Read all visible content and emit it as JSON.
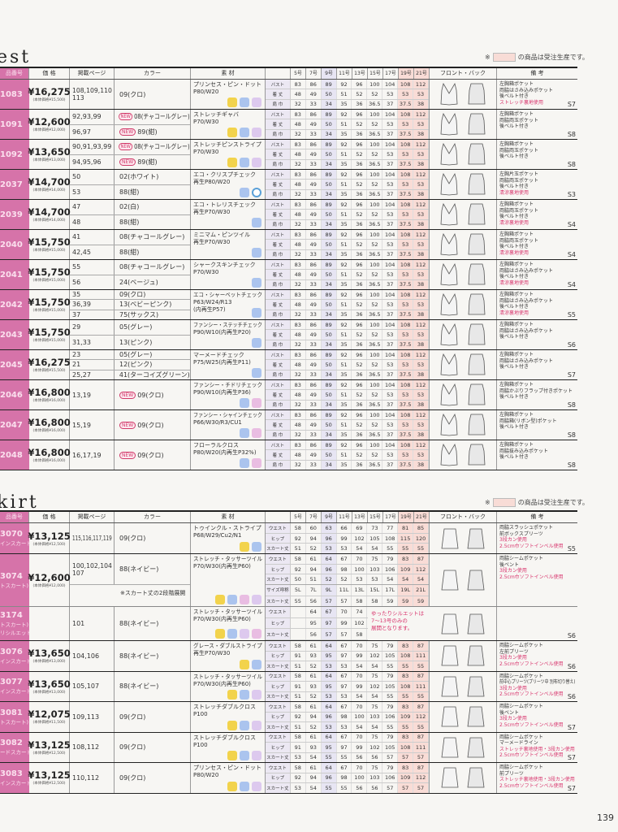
{
  "notice": {
    "mark": "※",
    "text": "の商品は受注生産です。",
    "box_color": "#f8dcd6"
  },
  "page_number": "139",
  "colors": {
    "code_column": "#d673a9",
    "size_highlight": "#f9dcd6",
    "size_9": "#e7e5f3",
    "red_note": "#d8336c"
  },
  "vest": {
    "title": "est",
    "headers": {
      "code": "品番号",
      "price": "価 格",
      "pages": "掲載ページ",
      "color": "カラー",
      "material": "素 材",
      "sizes": [
        "5号",
        "7号",
        "9号",
        "11号",
        "13号",
        "15号",
        "17号",
        "19号",
        "21号"
      ],
      "front_back": "フロント・バック",
      "notes": "備 考"
    },
    "size_rows": [
      {
        "label": "バスト",
        "values": [
          "83",
          "86",
          "89",
          "92",
          "96",
          "100",
          "104",
          "108",
          "112"
        ]
      },
      {
        "label": "着 丈",
        "values": [
          "48",
          "49",
          "50",
          "51",
          "52",
          "52",
          "53",
          "53",
          "53"
        ]
      },
      {
        "label": "肩 巾",
        "values": [
          "32",
          "33",
          "34",
          "35",
          "36",
          "36.5",
          "37",
          "37.5",
          "38"
        ]
      }
    ],
    "products": [
      {
        "code": "1083",
        "price": "¥16,275",
        "base": "(本体価格¥15,500)",
        "variants": [
          {
            "pages": "108,109,110\n113",
            "color": "09(クロ)"
          }
        ],
        "material": [
          "プリンセス・ピン・ドット",
          "P80/W20"
        ],
        "icons": [
          "smile-icon",
          "washing-icon",
          "stretch-icon"
        ],
        "notes": [
          "左胸箱ポケット",
          "両脇はさみ込みポケット",
          "後ベルト付き"
        ],
        "red": [
          "ストレッチ裏地使用"
        ],
        "page": "S7"
      },
      {
        "code": "1091",
        "price": "¥12,600",
        "base": "(本体価格¥12,000)",
        "variants": [
          {
            "pages": "92,93,99",
            "new": "NEW",
            "color": "08(チャコールグレー)"
          },
          {
            "pages": "96,97",
            "new": "NEW",
            "color": "89(紺)"
          }
        ],
        "material": [
          "ストレッチギャバ",
          "P70/W30"
        ],
        "icons": [
          "smile-icon",
          "washing-icon",
          "stretch-icon"
        ],
        "notes": [
          "左胸箱ポケット",
          "両脇両玉ポケット",
          "後ベルト付き"
        ],
        "red": [],
        "page": "S8"
      },
      {
        "code": "1092",
        "price": "¥13,650",
        "base": "(本体価格¥13,000)",
        "variants": [
          {
            "pages": "90,91,93,99",
            "new": "NEW",
            "color": "08(チャコールグレー)"
          },
          {
            "pages": "94,95,96",
            "new": "NEW",
            "color": "89(紺)"
          }
        ],
        "material": [
          "ストレッチピンストライプ",
          "P70/W30"
        ],
        "icons": [
          "smile-icon",
          "washing-icon",
          "stretch-icon"
        ],
        "notes": [
          "左胸箱ポケット",
          "両脇両玉ポケット",
          "後ベルト付き"
        ],
        "red": [],
        "page": "S8"
      },
      {
        "code": "2037",
        "price": "¥14,700",
        "base": "(本体価格¥14,000)",
        "variants": [
          {
            "pages": "50",
            "color": "02(ホワイト)"
          },
          {
            "pages": "53",
            "color": "88(紺)"
          }
        ],
        "material": [
          "エコ・クリスプチェック",
          "再生P80/W20"
        ],
        "icons": [
          "washing-icon",
          "eco-icon"
        ],
        "notes": [
          "左胸片玉ポケット",
          "両脇両玉ポケット",
          "後ベルト付き"
        ],
        "red": [
          "清涼裏地使用"
        ],
        "page": "S3"
      },
      {
        "code": "2039",
        "price": "¥14,700",
        "base": "(本体価格¥14,000)",
        "variants": [
          {
            "pages": "47",
            "color": "02(白)"
          },
          {
            "pages": "48",
            "color": "88(紺)"
          }
        ],
        "material": [
          "エコ・トレリスチェック",
          "再生P70/W30"
        ],
        "icons": [
          "washing-icon"
        ],
        "notes": [
          "左胸箱ポケット",
          "両脇両玉ポケット",
          "後ベルト付き"
        ],
        "red": [
          "清涼裏地使用"
        ],
        "page": "S4"
      },
      {
        "code": "2040",
        "price": "¥15,750",
        "base": "(本体価格¥15,000)",
        "variants": [
          {
            "pages": "41",
            "color": "08(チャコールグレー)"
          },
          {
            "pages": "42,45",
            "color": "88(紺)"
          }
        ],
        "material": [
          "ミニマム・ピンツイル",
          "再生P70/W30"
        ],
        "icons": [
          "washing-icon"
        ],
        "notes": [
          "左胸箱ポケット",
          "両脇両玉ポケット",
          "後ベルト付き"
        ],
        "red": [
          "清涼裏地使用"
        ],
        "page": "S4"
      },
      {
        "code": "2041",
        "price": "¥15,750",
        "base": "(本体価格¥15,000)",
        "variants": [
          {
            "pages": "55",
            "color": "08(チャコールグレー)"
          },
          {
            "pages": "56",
            "color": "24(ベージュ)"
          }
        ],
        "material": [
          "シャークスキンチェック",
          "P70/W30"
        ],
        "icons": [
          "washing-icon"
        ],
        "notes": [
          "左胸箱ポケット",
          "両脇はさみ込みポケット",
          "後ベルト付き"
        ],
        "red": [
          "清涼裏地使用"
        ],
        "page": "S4"
      },
      {
        "code": "2042",
        "price": "¥15,750",
        "base": "(本体価格¥15,000)",
        "variants": [
          {
            "pages": "35",
            "color": "09(クロ)"
          },
          {
            "pages": "36,39",
            "color": "13(ベビーピンク)"
          },
          {
            "pages": "37",
            "color": "75(サックス)"
          }
        ],
        "material": [
          "エコ・シャーベットチェック",
          "P63/W24/R13",
          "(内再生P57)"
        ],
        "icons": [
          "washing-icon"
        ],
        "notes": [
          "左胸箱ポケット",
          "両脇はさみ込みポケット",
          "後ベルト付き"
        ],
        "red": [
          "清涼裏地使用"
        ],
        "page": "S5"
      },
      {
        "code": "2043",
        "price": "¥15,750",
        "base": "(本体価格¥15,000)",
        "variants": [
          {
            "pages": "29",
            "color": "05(グレー)"
          },
          {
            "pages": "31,33",
            "color": "13(ピンク)"
          }
        ],
        "material": [
          "ファンシー・ステッチチェック",
          "P90/W10(内再生P20)"
        ],
        "icons": [
          "washing-icon"
        ],
        "notes": [
          "左胸箱ポケット",
          "両脇はさみ込みポケット",
          "後ベルト付き"
        ],
        "red": [],
        "page": "S6"
      },
      {
        "code": "2045",
        "price": "¥16,275",
        "base": "(本体価格¥15,500)",
        "variants": [
          {
            "pages": "23",
            "color": "05(グレー)"
          },
          {
            "pages": "21",
            "color": "12(ピンク)"
          },
          {
            "pages": "25,27",
            "color": "41(ターコイズグリーン)"
          }
        ],
        "material": [
          "マーメードチェック",
          "P75/W25(内再生P11)"
        ],
        "icons": [
          "washing-icon"
        ],
        "notes": [
          "左胸箱ポケット",
          "両脇はさみ込みポケット",
          "後ベルト付き"
        ],
        "red": [],
        "page": "S7"
      },
      {
        "code": "2046",
        "price": "¥16,800",
        "base": "(本体価格¥16,000)",
        "variants": [
          {
            "pages": "13,19",
            "new": "NEW",
            "color": "09(クロ)"
          }
        ],
        "material": [
          "ファンシー・チドリチェック",
          "P90/W10(内再生P36)"
        ],
        "icons": [
          "washing-icon",
          "pocket-icon"
        ],
        "notes": [
          "左胸箱ポケット",
          "両脇かぶりフラップ付きポケット",
          "後ベルト付き"
        ],
        "red": [],
        "page": "S8"
      },
      {
        "code": "2047",
        "price": "¥16,800",
        "base": "(本体価格¥16,000)",
        "variants": [
          {
            "pages": "15,19",
            "new": "NEW",
            "color": "09(クロ)"
          }
        ],
        "material": [
          "ファンシー・シャインチェック",
          "P66/W30/R3/CU1"
        ],
        "icons": [
          "washing-icon",
          "pocket-icon"
        ],
        "notes": [
          "左胸箱ポケット",
          "両脇箱(リボン型)ポケット",
          "後ベルト付き"
        ],
        "red": [],
        "page": "S8"
      },
      {
        "code": "2048",
        "price": "¥16,800",
        "base": "(本体価格¥16,000)",
        "variants": [
          {
            "pages": "16,17,19",
            "new": "NEW",
            "color": "09(クロ)"
          }
        ],
        "material": [
          "フローラルクロス",
          "P80/W20(内再生P32%)"
        ],
        "icons": [
          "washing-icon",
          "pocket-icon"
        ],
        "notes": [
          "左胸箱ポケット",
          "両脇抜み込みポケット",
          "後ベルト付き"
        ],
        "red": [],
        "page": "S8"
      }
    ]
  },
  "skirt": {
    "title": "kirt",
    "headers": {
      "code": "品番号",
      "price": "価 格",
      "pages": "掲載ページ",
      "color": "カラー",
      "material": "素 材",
      "sizes": [
        "5号",
        "7号",
        "9号",
        "11号",
        "13号",
        "15号",
        "17号",
        "19号",
        "21号"
      ],
      "front_back": "フロント・バック",
      "notes": "備 考"
    },
    "size_labels": [
      "ウエスト",
      "ヒップ",
      "スカート丈"
    ],
    "products": [
      {
        "code": "3070",
        "sub": "インスカート)",
        "price": "¥13,125",
        "base": "(本体価格¥12,500)",
        "variants": [
          {
            "pages": "115,116,117,119",
            "color": "09(クロ)"
          }
        ],
        "material": [
          "トゥインクル・ストライプ",
          "P68/W29/Cu2/N1"
        ],
        "icons": [
          "smile-icon",
          "washing-icon"
        ],
        "sizes": [
          [
            "58",
            "60",
            "63",
            "66",
            "69",
            "73",
            "77",
            "81",
            "85"
          ],
          [
            "92",
            "94",
            "96",
            "99",
            "102",
            "105",
            "108",
            "115",
            "120"
          ],
          [
            "51",
            "52",
            "53",
            "53",
            "54",
            "54",
            "55",
            "55",
            "55"
          ]
        ],
        "notes": [
          "両脇スラッシュポケット",
          "前ボックスプリーツ"
        ],
        "red": [
          "3段カン使用",
          "2.5cm巾ソフトインベル使用"
        ],
        "page": "S5"
      },
      {
        "code": "3074",
        "sub": "トスカート)",
        "price": "¥12,600",
        "base": "(本体価格¥12,000)",
        "variants": [
          {
            "pages": "100,102,104\n107",
            "color": "88(ネイビー)"
          }
        ],
        "material": [
          "ストレッチ・タッサーツイル",
          "P70/W30(内再生P60)"
        ],
        "icons": [
          "smile-icon",
          "washing-icon",
          "pocket-icon",
          "stretch-icon"
        ],
        "sizes": [
          [
            "58",
            "61",
            "64",
            "67",
            "70",
            "75",
            "79",
            "83",
            "87"
          ],
          [
            "92",
            "94",
            "96",
            "98",
            "100",
            "103",
            "106",
            "109",
            "112"
          ],
          [
            "50",
            "51",
            "52",
            "52",
            "53",
            "53",
            "54",
            "54",
            "54"
          ]
        ],
        "notes": [
          "両脇シームポケット",
          "後ベント"
        ],
        "red": [
          "3段カン使用",
          "2.5cm巾ソフトインベル使用"
        ],
        "page": "",
        "long": {
          "caption": "※スカート丈の2段階展開",
          "labels": [
            "サイズ呼称",
            "スカート丈"
          ],
          "names": [
            "5L",
            "7L",
            "9L",
            "11L",
            "13L",
            "15L",
            "17L",
            "19L",
            "21L"
          ],
          "lengths": [
            "55",
            "56",
            "57",
            "57",
            "58",
            "58",
            "59",
            "59",
            "59"
          ]
        }
      },
      {
        "code": "3174",
        "sub": "トスカート)",
        "sub2": "リシルエット)",
        "price": "",
        "base": "",
        "variants": [
          {
            "pages": "101",
            "color": "88(ネイビー)"
          }
        ],
        "material": [
          "ストレッチ・タッサーツイル",
          "P70/W30(内再生P60)"
        ],
        "icons": [
          "smile-icon",
          "washing-icon",
          "stretch-icon",
          "pocket-icon"
        ],
        "sizes": [
          [
            "",
            "64",
            "67",
            "70",
            "74"
          ],
          [
            "",
            "95",
            "97",
            "99",
            "102"
          ],
          [
            "",
            "56",
            "57",
            "57",
            "58"
          ]
        ],
        "warn": [
          "ゆったりシルエットは",
          "7〜13号のみの",
          "展開となります。"
        ],
        "notes": [],
        "red": [],
        "page": "S6"
      },
      {
        "code": "3076",
        "sub": "インスカート)",
        "price": "¥13,650",
        "base": "(本体価格¥13,000)",
        "variants": [
          {
            "pages": "104,106",
            "color": "88(ネイビー)"
          }
        ],
        "material": [
          "グレース・ダブルストライプ",
          "再生P70/W30"
        ],
        "icons": [
          "smile-icon",
          "washing-icon"
        ],
        "sizes": [
          [
            "58",
            "61",
            "64",
            "67",
            "70",
            "75",
            "79",
            "83",
            "87"
          ],
          [
            "91",
            "93",
            "95",
            "97",
            "99",
            "102",
            "105",
            "108",
            "111"
          ],
          [
            "51",
            "52",
            "53",
            "53",
            "54",
            "54",
            "55",
            "55",
            "55"
          ]
        ],
        "notes": [
          "両脇シームポケット",
          "左前プリーツ"
        ],
        "red": [
          "3段カン使用",
          "2.5cm巾ソフトインベル使用"
        ],
        "page": "S6"
      },
      {
        "code": "3077",
        "sub": "インスカート)",
        "price": "¥13,650",
        "base": "(本体価格¥13,000)",
        "variants": [
          {
            "pages": "105,107",
            "color": "88(ネイビー)"
          }
        ],
        "material": [
          "ストレッチ・タッサーツイル",
          "P70/W30(内再生P60)"
        ],
        "icons": [
          "smile-icon",
          "washing-icon",
          "stretch-icon"
        ],
        "sizes": [
          [
            "58",
            "61",
            "64",
            "67",
            "70",
            "75",
            "79",
            "83",
            "87"
          ],
          [
            "91",
            "93",
            "95",
            "97",
            "99",
            "102",
            "105",
            "108",
            "111"
          ],
          [
            "51",
            "52",
            "53",
            "53",
            "54",
            "54",
            "55",
            "55",
            "55"
          ]
        ],
        "notes": [
          "両脇シームポケット",
          "前中心プリーツ(プリーツ中 別布切り替え)"
        ],
        "red": [
          "3段カン使用",
          "2.5cm巾ソフトインベル使用"
        ],
        "page": "S6"
      },
      {
        "code": "3081",
        "sub": "トスカート)",
        "price": "¥12,075",
        "base": "(本体価格¥11,500)",
        "variants": [
          {
            "pages": "109,113",
            "color": "09(クロ)"
          }
        ],
        "material": [
          "ストレッチダブルクロス",
          "P100"
        ],
        "icons": [
          "smile-icon",
          "washing-icon",
          "stretch-icon"
        ],
        "sizes": [
          [
            "58",
            "61",
            "64",
            "67",
            "70",
            "75",
            "79",
            "83",
            "87"
          ],
          [
            "92",
            "94",
            "96",
            "98",
            "100",
            "103",
            "106",
            "109",
            "112"
          ],
          [
            "51",
            "52",
            "53",
            "53",
            "54",
            "54",
            "55",
            "55",
            "55"
          ]
        ],
        "notes": [
          "両脇シームポケット",
          "後ベント"
        ],
        "red": [
          "3段カン使用",
          "2.5cm巾ソフトインベル使用"
        ],
        "page": "S7"
      },
      {
        "code": "3082",
        "sub": "ードスカート)",
        "price": "¥13,125",
        "base": "(本体価格¥12,500)",
        "variants": [
          {
            "pages": "108,112",
            "color": "09(クロ)"
          }
        ],
        "material": [
          "ストレッチダブルクロス",
          "P100"
        ],
        "icons": [
          "smile-icon",
          "washing-icon",
          "stretch-icon"
        ],
        "sizes": [
          [
            "58",
            "61",
            "64",
            "67",
            "70",
            "75",
            "79",
            "83",
            "87"
          ],
          [
            "91",
            "93",
            "95",
            "97",
            "99",
            "102",
            "105",
            "108",
            "111"
          ],
          [
            "53",
            "54",
            "55",
            "55",
            "56",
            "56",
            "57",
            "57",
            "57"
          ]
        ],
        "notes": [
          "両脇シームポケット",
          "マーメードライン"
        ],
        "red": [
          "ストレッチ裏地使用・3段カン使用",
          "2.5cm巾ソフトインベル使用"
        ],
        "page": "S7"
      },
      {
        "code": "3083",
        "sub": "インスカート)",
        "price": "¥13,125",
        "base": "(本体価格¥12,500)",
        "variants": [
          {
            "pages": "110,112",
            "color": "09(クロ)"
          }
        ],
        "material": [
          "プリンセス・ピン・ドット",
          "P80/W20"
        ],
        "icons": [
          "smile-icon",
          "washing-icon",
          "stretch-icon"
        ],
        "sizes": [
          [
            "58",
            "61",
            "64",
            "67",
            "70",
            "75",
            "79",
            "83",
            "87"
          ],
          [
            "92",
            "94",
            "96",
            "98",
            "100",
            "103",
            "106",
            "109",
            "112"
          ],
          [
            "53",
            "54",
            "55",
            "55",
            "56",
            "56",
            "57",
            "57",
            "57"
          ]
        ],
        "notes": [
          "両脇シームポケット",
          "前プリーツ"
        ],
        "red": [
          "ストレッチ裏地使用・3段カン使用",
          "2.5cm巾ソフトインベル使用"
        ],
        "page": "S7"
      }
    ]
  }
}
